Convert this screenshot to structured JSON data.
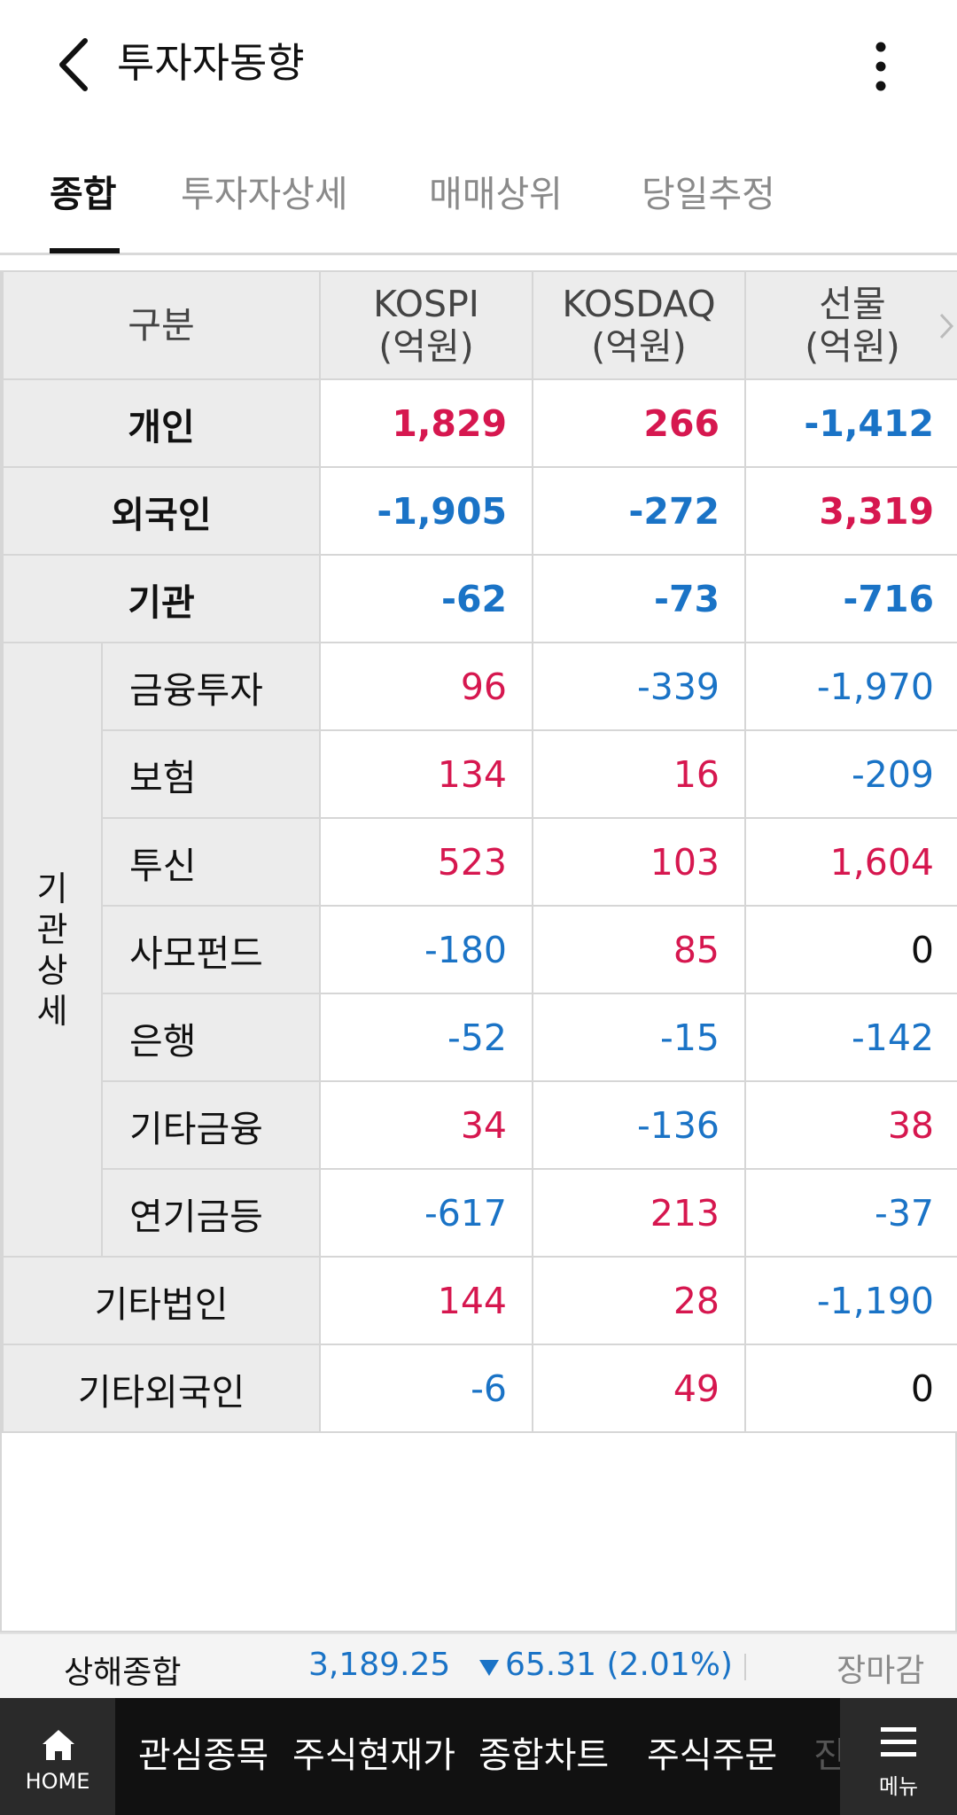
{
  "header": {
    "title": "투자자동향",
    "back_icon": "chevron-left-icon",
    "more_icon": "kebab-icon"
  },
  "tabs": [
    {
      "label": "종합",
      "active": true
    },
    {
      "label": "투자자상세",
      "active": false
    },
    {
      "label": "매매상위",
      "active": false
    },
    {
      "label": "당일추정",
      "active": false
    }
  ],
  "table": {
    "headers": [
      {
        "line1": "구분",
        "line2": ""
      },
      {
        "line1": "KOSPI",
        "line2": "(억원)"
      },
      {
        "line1": "KOSDAQ",
        "line2": "(억원)"
      },
      {
        "line1": "선물",
        "line2": "(억원)"
      }
    ],
    "group_label": [
      "기",
      "관",
      "상",
      "세"
    ],
    "rows": [
      {
        "label": "개인",
        "values": [
          "1,829",
          "266",
          "-1,412"
        ]
      },
      {
        "label": "외국인",
        "values": [
          "-1,905",
          "-272",
          "3,319"
        ]
      },
      {
        "label": "기관",
        "values": [
          "-62",
          "-73",
          "-716"
        ]
      },
      {
        "label": "금융투자",
        "values": [
          "96",
          "-339",
          "-1,970"
        ]
      },
      {
        "label": "보험",
        "values": [
          "134",
          "16",
          "-209"
        ]
      },
      {
        "label": "투신",
        "values": [
          "523",
          "103",
          "1,604"
        ]
      },
      {
        "label": "사모펀드",
        "values": [
          "-180",
          "85",
          "0"
        ]
      },
      {
        "label": "은행",
        "values": [
          "-52",
          "-15",
          "-142"
        ]
      },
      {
        "label": "기타금융",
        "values": [
          "34",
          "-136",
          "38"
        ]
      },
      {
        "label": "연기금등",
        "values": [
          "-617",
          "213",
          "-37"
        ]
      },
      {
        "label": "기타법인",
        "values": [
          "144",
          "28",
          "-1,190"
        ]
      },
      {
        "label": "기타외국인",
        "values": [
          "-6",
          "49",
          "0"
        ]
      }
    ]
  },
  "index_bar": {
    "name": "상해종합",
    "value": "3,189.25",
    "change": "65.31 (2.01%)",
    "direction": "down",
    "status": "장마감"
  },
  "bottom_nav": {
    "home_label": "HOME",
    "items": [
      "관심종목",
      "주식현재가",
      "종합차트",
      "주식주문",
      "진"
    ],
    "menu_label": "메뉴"
  },
  "colors": {
    "positive": "#d6174f",
    "negative": "#1a73c6",
    "neutral": "#111111"
  }
}
